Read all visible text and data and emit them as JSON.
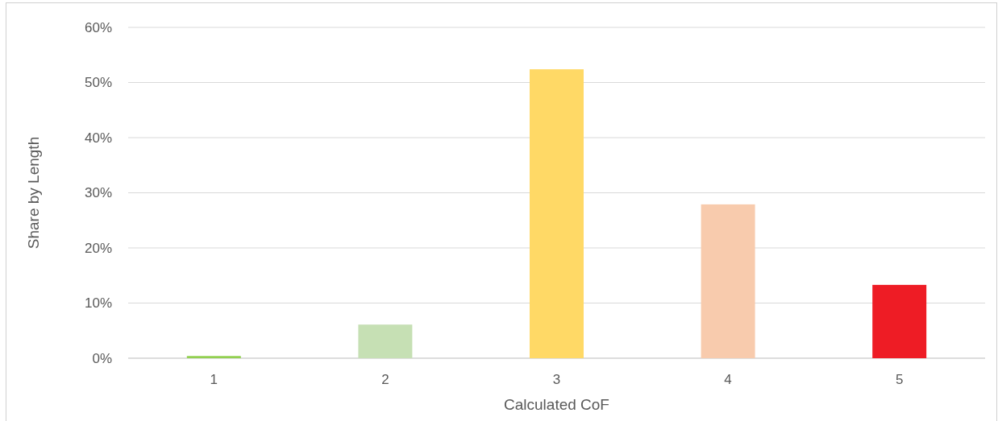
{
  "chart_data": {
    "type": "bar",
    "xlabel": "Calculated CoF",
    "ylabel": "Share by Length",
    "categories": [
      "1",
      "2",
      "3",
      "4",
      "5"
    ],
    "values": [
      0.4,
      6.1,
      52.4,
      27.9,
      13.3
    ],
    "colors": [
      "#92d050",
      "#c6e0b4",
      "#ffd966",
      "#f8cbad",
      "#ee1c25"
    ],
    "ylim": [
      0,
      60
    ],
    "yticks": [
      {
        "value": 0,
        "label": "0%"
      },
      {
        "value": 10,
        "label": "10%"
      },
      {
        "value": 20,
        "label": "20%"
      },
      {
        "value": 30,
        "label": "30%"
      },
      {
        "value": 40,
        "label": "40%"
      },
      {
        "value": 50,
        "label": "50%"
      },
      {
        "value": 60,
        "label": "60%"
      }
    ],
    "grid": "y"
  }
}
